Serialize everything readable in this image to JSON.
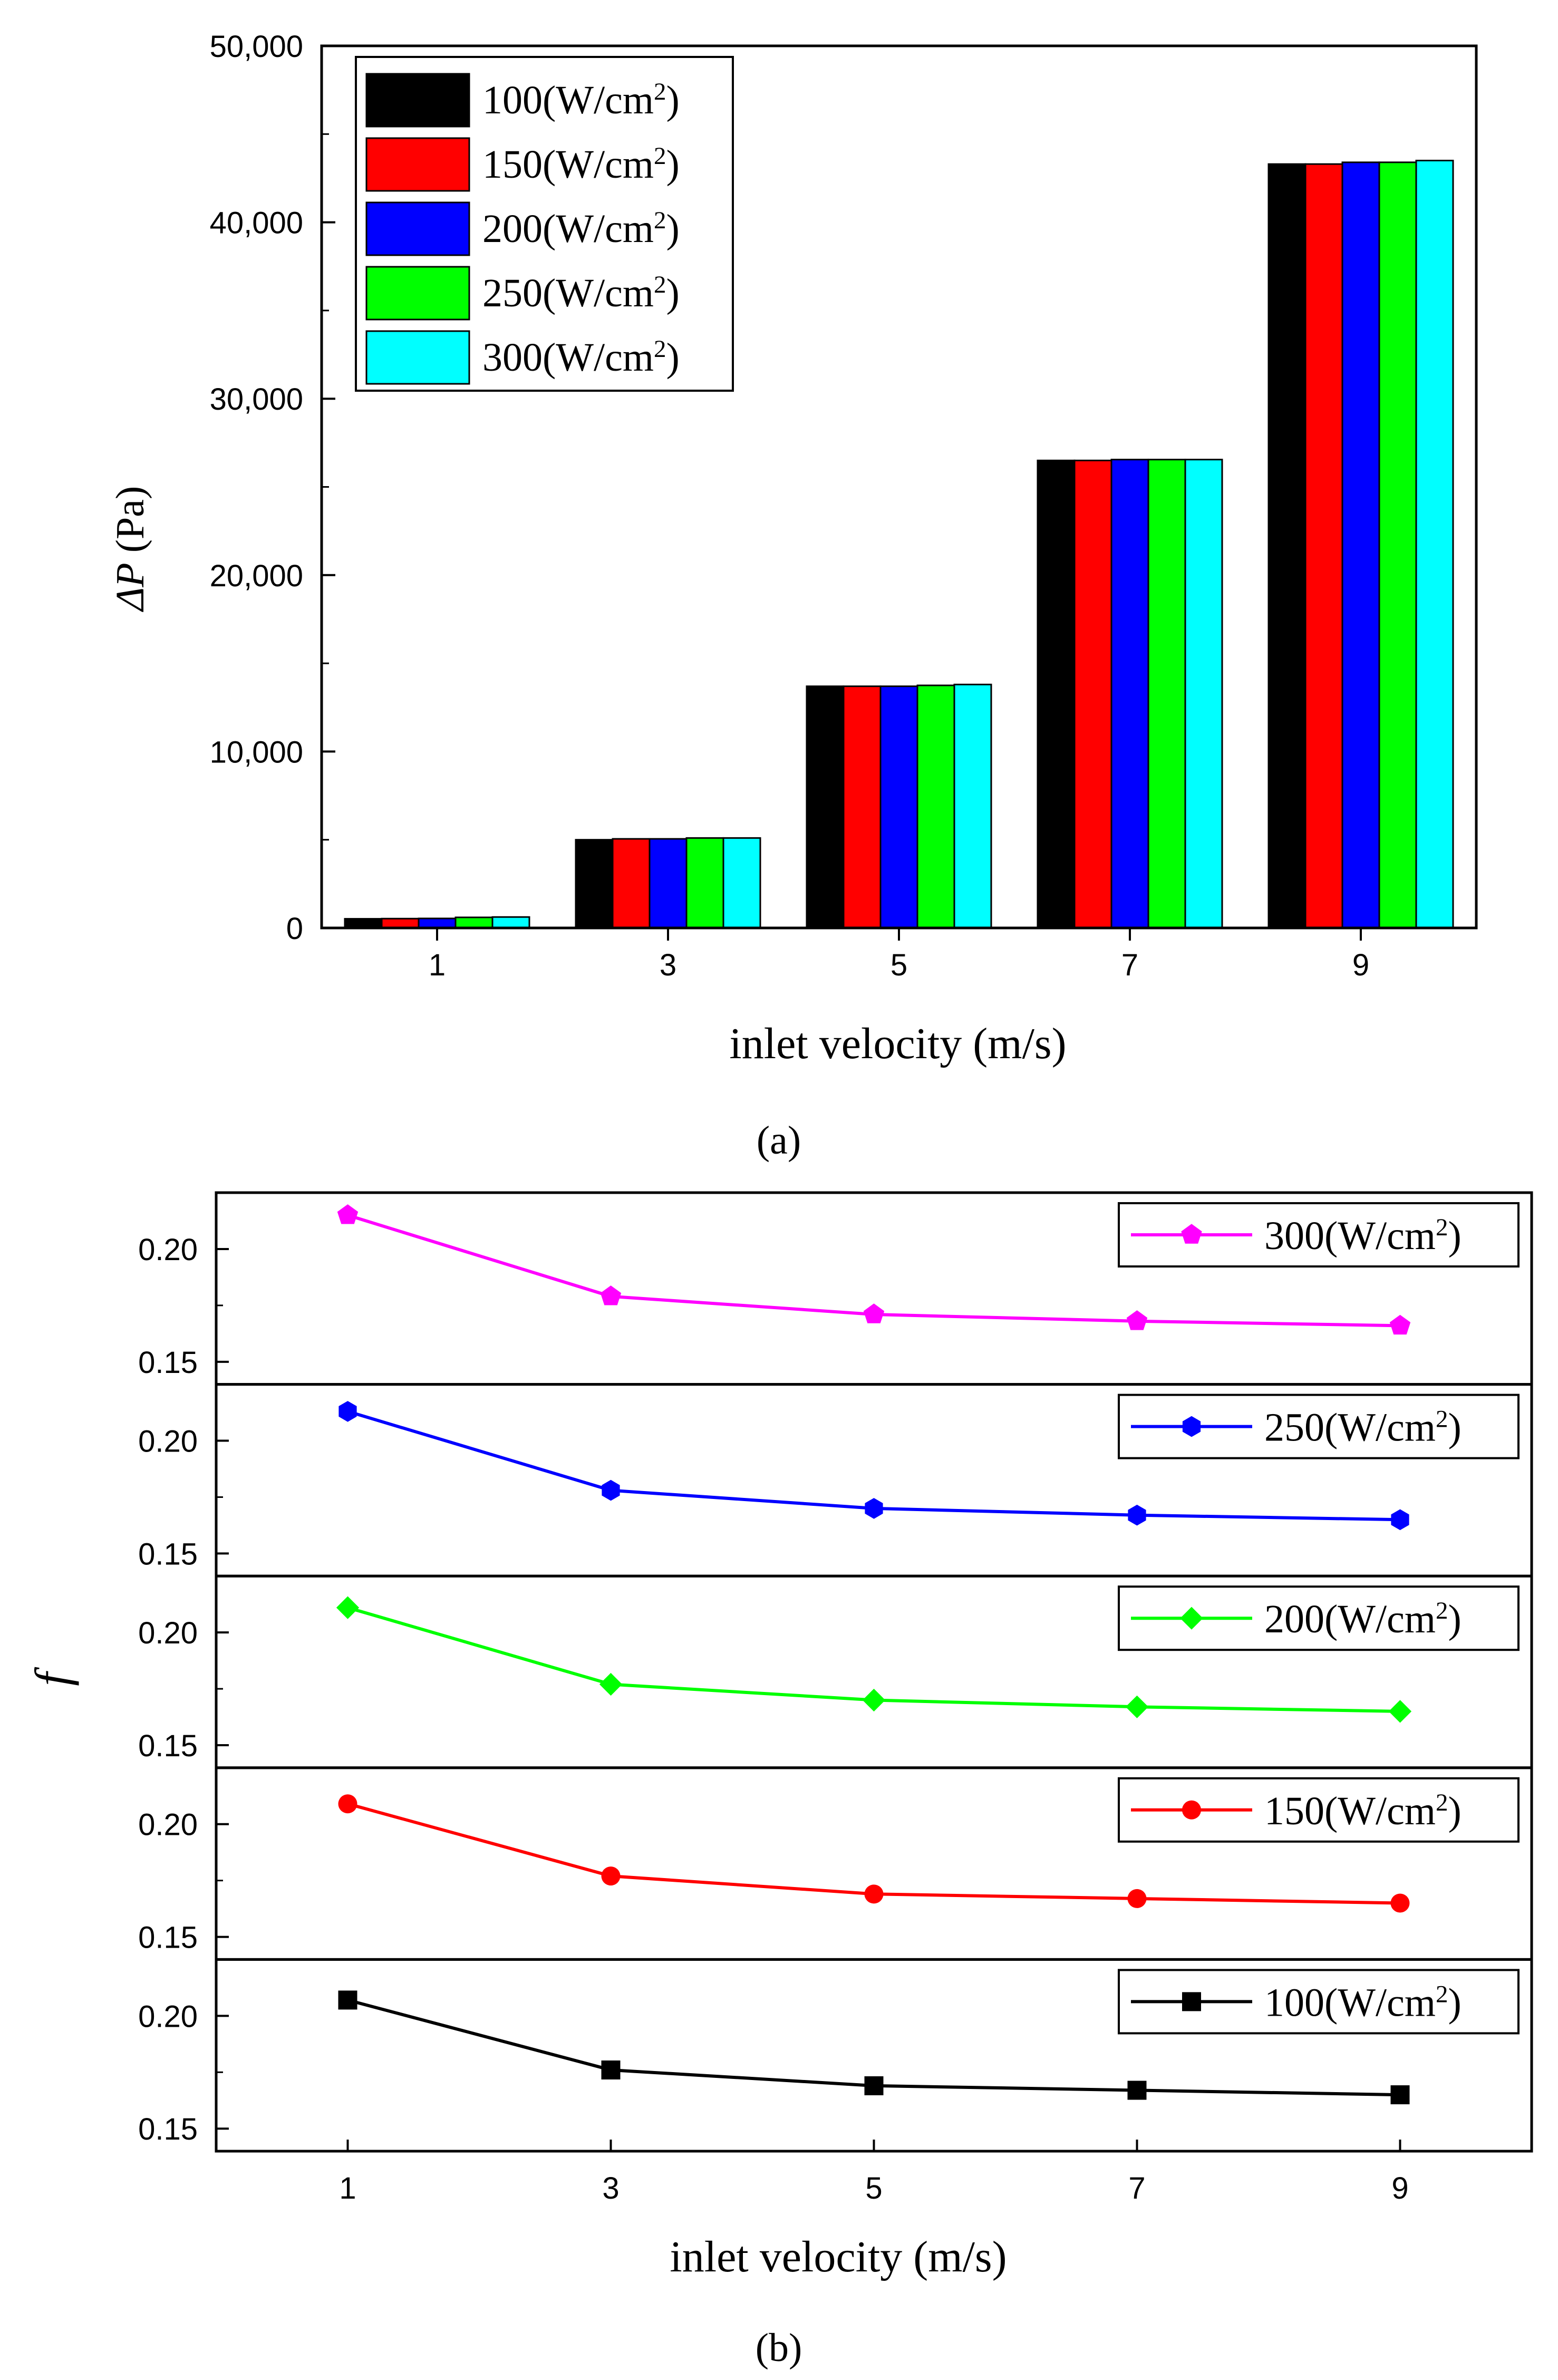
{
  "colors": {
    "p100": "#000000",
    "p150": "#ff0000",
    "p200": "#0000ff",
    "p250": "#00ff00",
    "p300": "#00ffff",
    "magenta": "#ff00ff"
  },
  "chart_data": [
    {
      "type": "bar",
      "panel_label": "(a)",
      "categories": [
        "1",
        "3",
        "5",
        "7",
        "9"
      ],
      "xlabel": "inlet velocity (m/s)",
      "ylabel_symbol": "ΔP",
      "ylabel_unit": " (Pa)",
      "ylim": [
        0,
        50000
      ],
      "yticks": [
        0,
        10000,
        20000,
        30000,
        40000,
        50000
      ],
      "ytick_labels": [
        "0",
        "10,000",
        "20,000",
        "30,000",
        "40,000",
        "50,000"
      ],
      "legend_position": "top-left",
      "series": [
        {
          "name": "100(W/cm2)",
          "base": "100(W/cm",
          "exp": "2",
          "close": ")",
          "color_key": "p100",
          "values": [
            520,
            5000,
            13700,
            26500,
            43300
          ]
        },
        {
          "name": "150(W/cm2)",
          "base": "150(W/cm",
          "exp": "2",
          "close": ")",
          "color_key": "p150",
          "values": [
            530,
            5050,
            13700,
            26500,
            43300
          ]
        },
        {
          "name": "200(W/cm2)",
          "base": "200(W/cm",
          "exp": "2",
          "close": ")",
          "color_key": "p200",
          "values": [
            540,
            5050,
            13700,
            26550,
            43400
          ]
        },
        {
          "name": "250(W/cm2)",
          "base": "250(W/cm",
          "exp": "2",
          "close": ")",
          "color_key": "p250",
          "values": [
            600,
            5100,
            13750,
            26550,
            43400
          ]
        },
        {
          "name": "300(W/cm2)",
          "base": "300(W/cm",
          "exp": "2",
          "close": ")",
          "color_key": "p300",
          "values": [
            620,
            5100,
            13800,
            26550,
            43500
          ]
        }
      ]
    },
    {
      "type": "line",
      "panel_label": "(b)",
      "x": [
        1,
        3,
        5,
        7,
        9
      ],
      "xticks": [
        "1",
        "3",
        "5",
        "7",
        "9"
      ],
      "xlim": [
        0,
        10
      ],
      "xlabel": "inlet velocity (m/s)",
      "ylabel": "f",
      "ylim": [
        0.14,
        0.225
      ],
      "yticks": [
        0.15,
        0.2
      ],
      "ytick_labels": [
        "0.15",
        "0.20"
      ],
      "legend_position": "top-right",
      "panels": [
        {
          "name": "300(W/cm2)",
          "base": "300(W/cm",
          "exp": "2",
          "close": ")",
          "color_key": "magenta",
          "marker": "pentagon",
          "values": [
            0.215,
            0.179,
            0.171,
            0.168,
            0.166
          ]
        },
        {
          "name": "250(W/cm2)",
          "base": "250(W/cm",
          "exp": "2",
          "close": ")",
          "color_key": "p200",
          "marker": "hexagon",
          "values": [
            0.213,
            0.178,
            0.17,
            0.167,
            0.165
          ]
        },
        {
          "name": "200(W/cm2)",
          "base": "200(W/cm",
          "exp": "2",
          "close": ")",
          "color_key": "p250",
          "marker": "diamond",
          "values": [
            0.211,
            0.177,
            0.17,
            0.167,
            0.165
          ]
        },
        {
          "name": "150(W/cm2)",
          "base": "150(W/cm",
          "exp": "2",
          "close": ")",
          "color_key": "p150",
          "marker": "circle",
          "values": [
            0.209,
            0.177,
            0.169,
            0.167,
            0.165
          ]
        },
        {
          "name": "100(W/cm2)",
          "base": "100(W/cm",
          "exp": "2",
          "close": ")",
          "color_key": "p100",
          "marker": "square",
          "values": [
            0.207,
            0.176,
            0.169,
            0.167,
            0.165
          ]
        }
      ]
    }
  ]
}
